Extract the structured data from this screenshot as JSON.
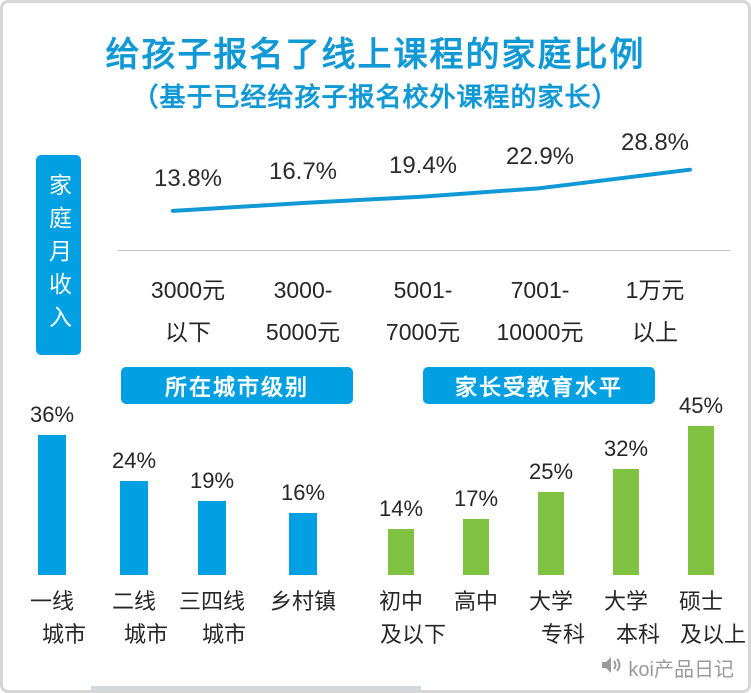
{
  "title": "给孩子报名了线上课程的家庭比例",
  "subtitle": "（基于已经给孩子报名校外课程的家长）",
  "section_headers": {
    "city": "所在城市级别",
    "education": "家长受教育水平"
  },
  "watermark": "koi产品日记",
  "colors": {
    "brand_blue": "#1199d6",
    "fill_blue": "#00a0e2",
    "bar_green": "#7fc242",
    "text_dark": "#262626",
    "watermark_gray": "#9a9a9a"
  },
  "chart_data": [
    {
      "id": "income_line",
      "type": "line",
      "group_label": "家庭月收入",
      "categories": [
        "3000元以下",
        "3000-5000元",
        "5001-7000元",
        "7001-10000元",
        "1万元以上"
      ],
      "category_lines": [
        [
          "3000元",
          "以下"
        ],
        [
          "3000-",
          "5000元"
        ],
        [
          "5001-",
          "7000元"
        ],
        [
          "7001-",
          "10000元"
        ],
        [
          "1万元",
          "以上"
        ]
      ],
      "values": [
        13.8,
        16.7,
        19.4,
        22.9,
        28.8
      ],
      "labels": [
        "13.8%",
        "16.7%",
        "19.4%",
        "22.9%",
        "28.8%"
      ],
      "ylim": [
        10,
        30
      ],
      "grid": false,
      "legend": false
    },
    {
      "id": "city_tier",
      "type": "bar",
      "group_label": "所在城市级别",
      "categories": [
        "一线城市",
        "二线城市",
        "三四线城市",
        "乡村镇"
      ],
      "category_lines": [
        [
          "一线",
          "城市"
        ],
        [
          "二线",
          "城市"
        ],
        [
          "三四线",
          "城市"
        ],
        [
          "乡村镇"
        ]
      ],
      "values": [
        36,
        24,
        19,
        16
      ],
      "labels": [
        "36%",
        "24%",
        "19%",
        "16%"
      ],
      "color": "#00a0e2",
      "ylim": [
        0,
        40
      ],
      "grid": false,
      "legend": false
    },
    {
      "id": "parent_education",
      "type": "bar",
      "group_label": "家长受教育水平",
      "categories": [
        "初中及以下",
        "高中",
        "大学专科",
        "大学本科",
        "硕士及以上"
      ],
      "category_lines": [
        [
          "初中",
          "及以下"
        ],
        [
          "高中"
        ],
        [
          "大学",
          "专科"
        ],
        [
          "大学",
          "本科"
        ],
        [
          "硕士",
          "及以上"
        ]
      ],
      "values": [
        14,
        17,
        25,
        32,
        45
      ],
      "labels": [
        "14%",
        "17%",
        "25%",
        "32%",
        "45%"
      ],
      "color": "#7fc242",
      "ylim": [
        0,
        50
      ],
      "grid": false,
      "legend": false
    }
  ]
}
